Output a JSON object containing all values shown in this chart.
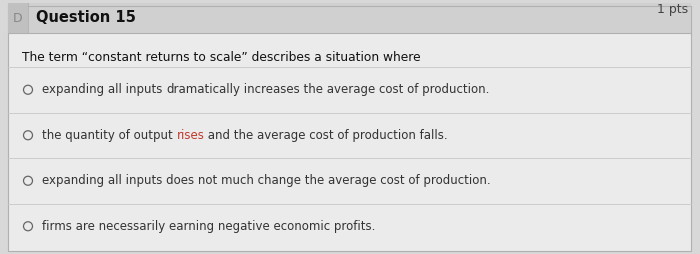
{
  "title": "Question 15",
  "pts": "1 pts",
  "question": "The term “constant returns to scale” describes a situation where",
  "options": [
    [
      {
        "text": "expanding all inputs ",
        "color": "#333333",
        "style": "normal"
      },
      {
        "text": "dramatically",
        "color": "#333333",
        "style": "normal",
        "underline": true
      },
      {
        "text": " increases the average cost of production.",
        "color": "#333333",
        "style": "normal"
      }
    ],
    [
      {
        "text": "the quantity of output ",
        "color": "#333333",
        "style": "normal"
      },
      {
        "text": "rises",
        "color": "#c0392b",
        "style": "normal"
      },
      {
        "text": " and the average cost of production falls.",
        "color": "#333333",
        "style": "normal"
      }
    ],
    [
      {
        "text": "expanding all inputs does not much change the average cost of production.",
        "color": "#333333",
        "style": "normal"
      }
    ],
    [
      {
        "text": "firms are necessarily earning negative economic profits.",
        "color": "#333333",
        "style": "normal"
      }
    ]
  ],
  "outer_bg": "#d8d8d8",
  "header_bg": "#d0d0d0",
  "content_bg": "#ebebeb",
  "border_color": "#b0b0b0",
  "divider_color": "#c8c8c8",
  "header_text_color": "#111111",
  "pts_color": "#444444",
  "question_color": "#111111",
  "circle_color": "#666666",
  "icon_bg": "#c0c0c0",
  "icon_color": "#888888"
}
